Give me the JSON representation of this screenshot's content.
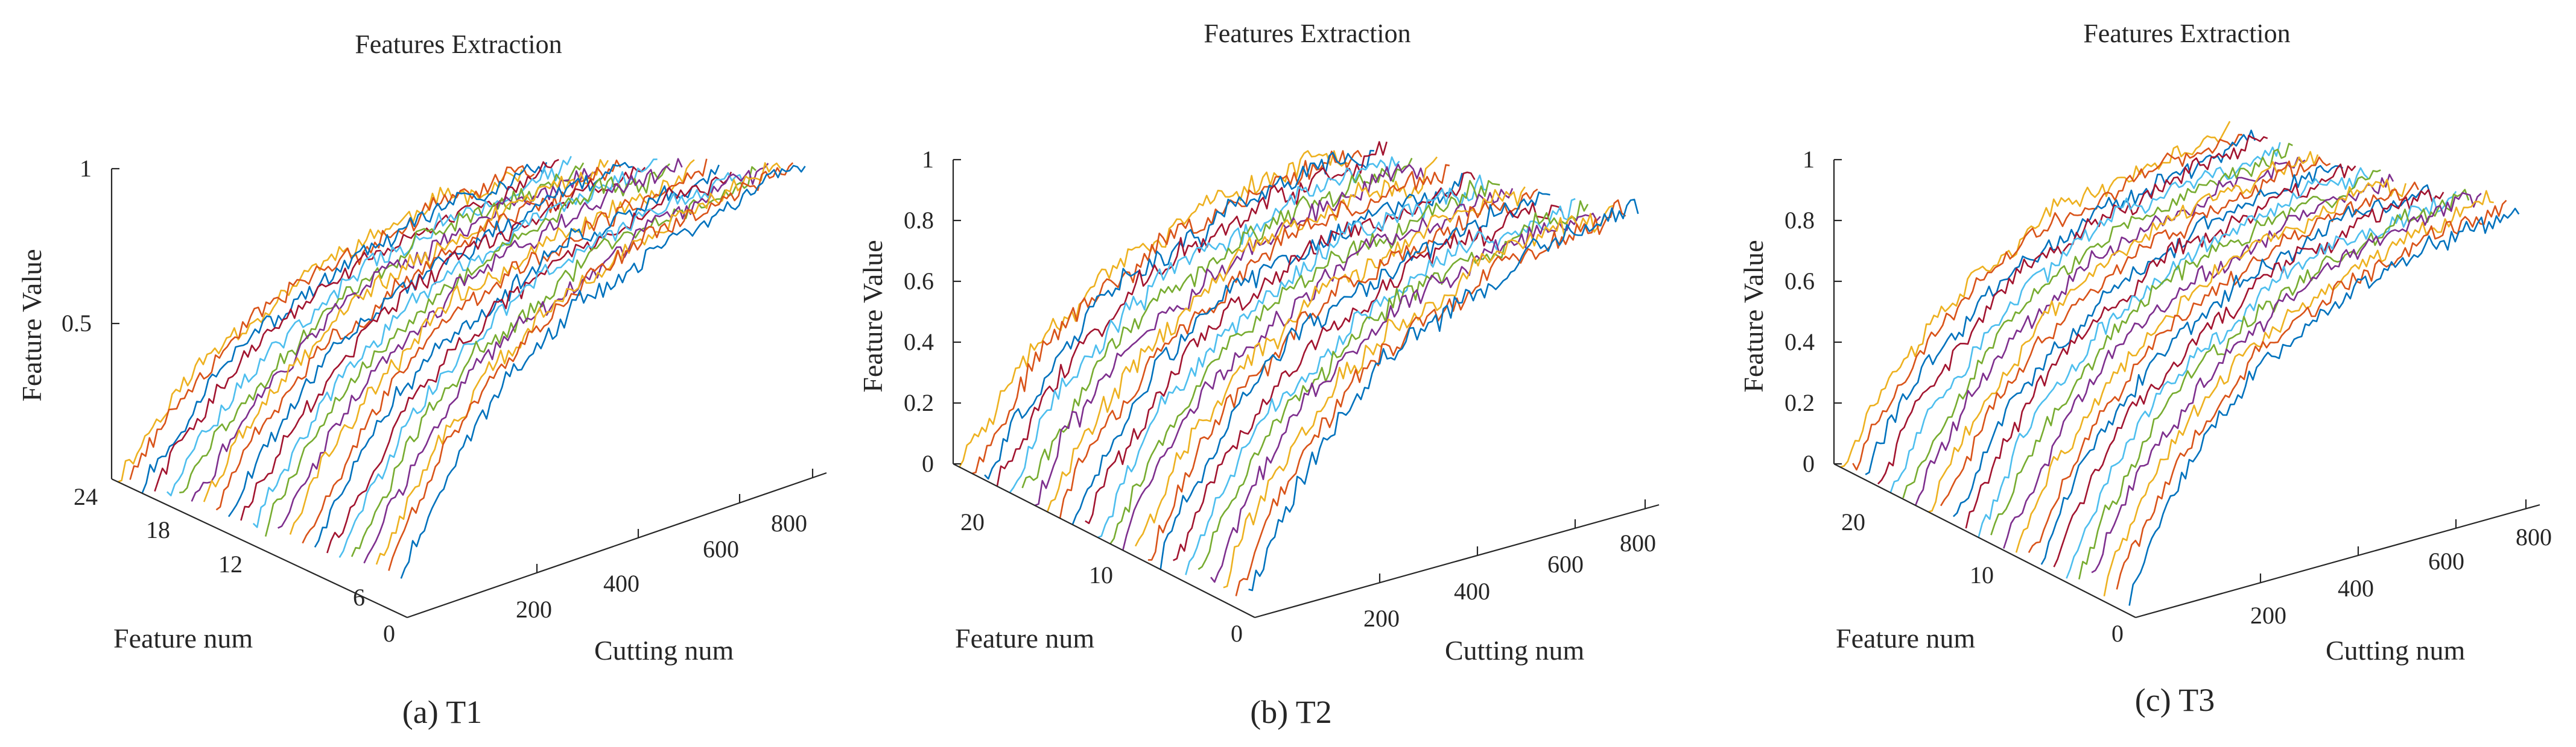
{
  "chart_data": [
    {
      "type": "line",
      "subtype": "3d-waterfall",
      "caption": "(a) T1",
      "title": "Features Extraction",
      "xlabel": "Cutting num",
      "ylabel": "Feature num",
      "zlabel": "Feature Value",
      "x_range": [
        0,
        900
      ],
      "y_range": [
        0,
        24
      ],
      "z_range": [
        0,
        1
      ],
      "x_ticks": [
        "200",
        "400",
        "600",
        "800"
      ],
      "y_ticks": [
        "24",
        "18",
        "12",
        "6",
        "0"
      ],
      "z_ticks": [
        "1",
        "0.5"
      ],
      "feature_count": 24,
      "cutting_count": 315,
      "start_values": [
        0.12,
        0.12,
        0.11,
        0.11,
        0.1,
        0.1,
        0.09,
        0.09,
        0.08,
        0.08,
        0.07,
        0.07,
        0.06,
        0.06,
        0.05,
        0.05,
        0.05,
        0.04,
        0.04,
        0.03,
        0.03,
        0.02,
        0.02,
        0.01
      ],
      "end_values": [
        1.0,
        0.98,
        0.95,
        0.92,
        0.9,
        0.88,
        0.86,
        0.85,
        0.84,
        0.83,
        0.82,
        0.8,
        0.78,
        0.76,
        0.74,
        0.72,
        0.7,
        0.68,
        0.66,
        0.64,
        0.62,
        0.6,
        0.58,
        0.56
      ],
      "noise": 0.05,
      "colors": [
        "#0072BD",
        "#D95319",
        "#EDB120",
        "#7E2F8E",
        "#77AC30",
        "#4DBEEE",
        "#A2142F"
      ],
      "grid": false,
      "legend": "none"
    },
    {
      "type": "line",
      "subtype": "3d-waterfall",
      "caption": "(b) T2",
      "title": "Features Extraction",
      "xlabel": "Cutting num",
      "ylabel": "Feature num",
      "zlabel": "Feature Value",
      "x_range": [
        0,
        900
      ],
      "y_range": [
        0,
        24
      ],
      "z_range": [
        0,
        1
      ],
      "x_ticks": [
        "200",
        "400",
        "600",
        "800"
      ],
      "y_ticks": [
        "20",
        "10",
        "0"
      ],
      "z_ticks": [
        "1",
        "0.8",
        "0.6",
        "0.4",
        "0.2",
        "0"
      ],
      "feature_count": 24,
      "cutting_count": 315,
      "start_values": [
        0.05,
        0.05,
        0.04,
        0.04,
        0.04,
        0.03,
        0.03,
        0.03,
        0.02,
        0.02,
        0.02,
        0.02,
        0.01,
        0.01,
        0.01,
        0.01,
        0.0,
        0.0,
        0.0,
        0.0,
        0.0,
        0.0,
        0.0,
        0.0
      ],
      "end_values": [
        0.97,
        0.95,
        0.93,
        0.92,
        0.9,
        0.89,
        0.88,
        0.87,
        0.86,
        0.85,
        0.84,
        0.83,
        0.82,
        0.8,
        0.79,
        0.78,
        0.77,
        0.76,
        0.75,
        0.74,
        0.73,
        0.72,
        0.71,
        0.7
      ],
      "noise": 0.06,
      "colors": [
        "#0072BD",
        "#D95319",
        "#EDB120",
        "#7E2F8E",
        "#77AC30",
        "#4DBEEE",
        "#A2142F"
      ],
      "grid": false,
      "legend": "none"
    },
    {
      "type": "line",
      "subtype": "3d-waterfall",
      "caption": "(c) T3",
      "title": "Features Extraction",
      "xlabel": "Cutting num",
      "ylabel": "Feature num",
      "zlabel": "Feature Value",
      "x_range": [
        0,
        900
      ],
      "y_range": [
        0,
        24
      ],
      "z_range": [
        0,
        1
      ],
      "x_ticks": [
        "200",
        "400",
        "600",
        "800"
      ],
      "y_ticks": [
        "20",
        "10",
        "0"
      ],
      "z_ticks": [
        "1",
        "0.8",
        "0.6",
        "0.4",
        "0.2",
        "0"
      ],
      "feature_count": 24,
      "cutting_count": 315,
      "start_values": [
        0.05,
        0.05,
        0.04,
        0.04,
        0.04,
        0.03,
        0.03,
        0.03,
        0.02,
        0.02,
        0.02,
        0.02,
        0.01,
        0.01,
        0.01,
        0.01,
        0.0,
        0.0,
        0.0,
        0.0,
        0.0,
        0.0,
        0.0,
        0.0
      ],
      "end_values": [
        0.97,
        0.96,
        0.95,
        0.94,
        0.93,
        0.92,
        0.91,
        0.9,
        0.89,
        0.88,
        0.87,
        0.86,
        0.85,
        0.84,
        0.83,
        0.82,
        0.81,
        0.8,
        0.79,
        0.78,
        0.77,
        0.76,
        0.75,
        0.74
      ],
      "noise": 0.05,
      "colors": [
        "#0072BD",
        "#D95319",
        "#EDB120",
        "#7E2F8E",
        "#77AC30",
        "#4DBEEE",
        "#A2142F"
      ],
      "grid": false,
      "legend": "none"
    }
  ]
}
